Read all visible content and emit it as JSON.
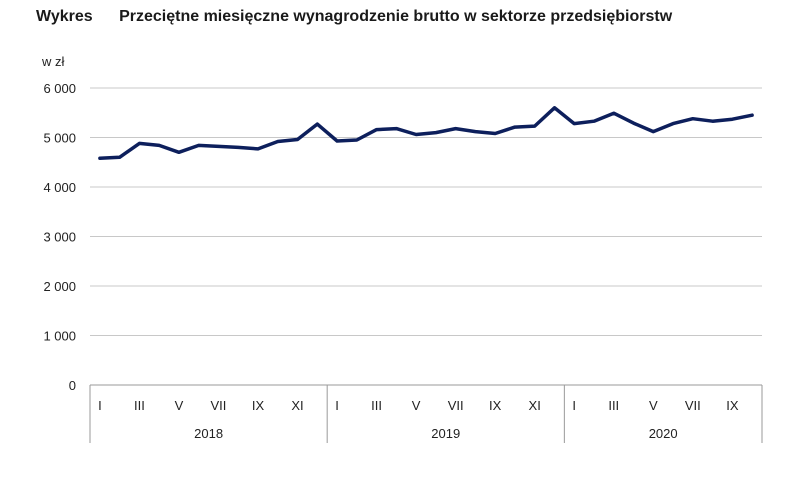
{
  "header": {
    "label": "Wykres",
    "title": "Przeciętne miesięczne wynagrodzenie brutto w sektorze przedsiębiorstw"
  },
  "colors": {
    "line": "#0d1f5c",
    "grid": "#c8c8c8",
    "axis": "#9a9a9a"
  },
  "chart_data": {
    "type": "line",
    "title": "Przeciętne miesięczne wynagrodzenie brutto w sektorze przedsiębiorstw",
    "ylabel": "w zł",
    "ylim": [
      0,
      6000
    ],
    "yticks": [
      "0",
      "1 000",
      "2 000",
      "3 000",
      "4 000",
      "5 000",
      "6 000"
    ],
    "ytick_values": [
      0,
      1000,
      2000,
      3000,
      4000,
      5000,
      6000
    ],
    "grid": true,
    "years": [
      "2018",
      "2019",
      "2020"
    ],
    "month_labels": [
      [
        "I",
        "III",
        "V",
        "VII",
        "IX",
        "XI"
      ],
      [
        "I",
        "III",
        "V",
        "VII",
        "IX",
        "XI"
      ],
      [
        "I",
        "III",
        "V",
        "VII",
        "IX"
      ]
    ],
    "categories": [
      "2018-01",
      "2018-02",
      "2018-03",
      "2018-04",
      "2018-05",
      "2018-06",
      "2018-07",
      "2018-08",
      "2018-09",
      "2018-10",
      "2018-11",
      "2018-12",
      "2019-01",
      "2019-02",
      "2019-03",
      "2019-04",
      "2019-05",
      "2019-06",
      "2019-07",
      "2019-08",
      "2019-09",
      "2019-10",
      "2019-11",
      "2019-12",
      "2020-01",
      "2020-02",
      "2020-03",
      "2020-04",
      "2020-05",
      "2020-06",
      "2020-07",
      "2020-08",
      "2020-09",
      "2020-10"
    ],
    "values": [
      4580,
      4600,
      4880,
      4840,
      4700,
      4840,
      4820,
      4800,
      4770,
      4920,
      4960,
      5270,
      4930,
      4950,
      5160,
      5180,
      5060,
      5100,
      5180,
      5120,
      5080,
      5210,
      5230,
      5600,
      5280,
      5330,
      5490,
      5290,
      5120,
      5280,
      5380,
      5330,
      5370,
      5450
    ]
  }
}
